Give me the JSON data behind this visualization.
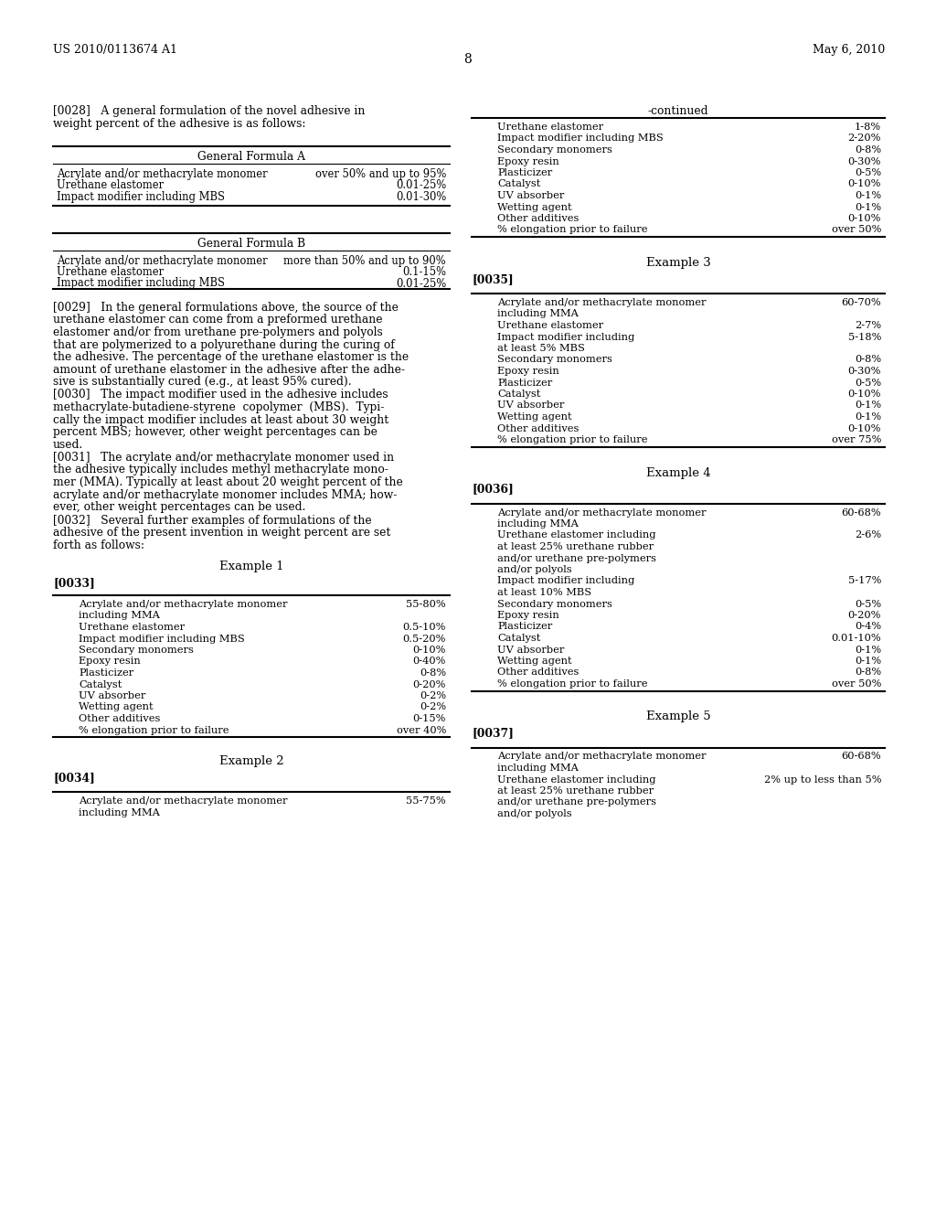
{
  "bg_color": "#ffffff",
  "header_left": "US 2010/0113674 A1",
  "header_right": "May 6, 2010",
  "page_number": "8",
  "left_col": {
    "para0028_lines": [
      "[0028]   A general formulation of the novel adhesive in",
      "weight percent of the adhesive is as follows:"
    ],
    "table_genA_title": "General Formula A",
    "table_genA_rows": [
      [
        "Acrylate and/or methacrylate monomer",
        "over 50% and up to 95%"
      ],
      [
        "Urethane elastomer",
        "0.01-25%"
      ],
      [
        "Impact modifier including MBS",
        "0.01-30%"
      ]
    ],
    "table_genB_title": "General Formula B",
    "table_genB_rows": [
      [
        "Acrylate and/or methacrylate monomer",
        "more than 50% and up to 90%"
      ],
      [
        "Urethane elastomer",
        "0.1-15%"
      ],
      [
        "Impact modifier including MBS",
        "0.01-25%"
      ]
    ],
    "para0029_lines": [
      "[0029]   In the general formulations above, the source of the",
      "urethane elastomer can come from a preformed urethane",
      "elastomer and/or from urethane pre-polymers and polyols",
      "that are polymerized to a polyurethane during the curing of",
      "the adhesive. The percentage of the urethane elastomer is the",
      "amount of urethane elastomer in the adhesive after the adhe-",
      "sive is substantially cured (e.g., at least 95% cured)."
    ],
    "para0030_lines": [
      "[0030]   The impact modifier used in the adhesive includes",
      "methacrylate-butadiene-styrene  copolymer  (MBS).  Typi-",
      "cally the impact modifier includes at least about 30 weight",
      "percent MBS; however, other weight percentages can be",
      "used."
    ],
    "para0031_lines": [
      "[0031]   The acrylate and/or methacrylate monomer used in",
      "the adhesive typically includes methyl methacrylate mono-",
      "mer (MMA). Typically at least about 20 weight percent of the",
      "acrylate and/or methacrylate monomer includes MMA; how-",
      "ever, other weight percentages can be used."
    ],
    "para0032_lines": [
      "[0032]   Several further examples of formulations of the",
      "adhesive of the present invention in weight percent are set",
      "forth as follows:"
    ],
    "example1_title": "Example 1",
    "para0033": "[0033]",
    "table_ex1_rows": [
      [
        "Acrylate and/or methacrylate monomer",
        "55-80%",
        true
      ],
      [
        "including MMA",
        "",
        false
      ],
      [
        "Urethane elastomer",
        "0.5-10%",
        false
      ],
      [
        "Impact modifier including MBS",
        "0.5-20%",
        false
      ],
      [
        "Secondary monomers",
        "0-10%",
        false
      ],
      [
        "Epoxy resin",
        "0-40%",
        false
      ],
      [
        "Plasticizer",
        "0-8%",
        false
      ],
      [
        "Catalyst",
        "0-20%",
        false
      ],
      [
        "UV absorber",
        "0-2%",
        false
      ],
      [
        "Wetting agent",
        "0-2%",
        false
      ],
      [
        "Other additives",
        "0-15%",
        false
      ],
      [
        "% elongation prior to failure",
        "over 40%",
        false
      ]
    ],
    "example2_title": "Example 2",
    "para0034": "[0034]",
    "table_ex2_rows": [
      [
        "Acrylate and/or methacrylate monomer",
        "55-75%",
        true
      ],
      [
        "including MMA",
        "",
        false
      ]
    ]
  },
  "right_col": {
    "continued_label": "-continued",
    "continued_rows": [
      [
        "Urethane elastomer",
        "1-8%"
      ],
      [
        "Impact modifier including MBS",
        "2-20%"
      ],
      [
        "Secondary monomers",
        "0-8%"
      ],
      [
        "Epoxy resin",
        "0-30%"
      ],
      [
        "Plasticizer",
        "0-5%"
      ],
      [
        "Catalyst",
        "0-10%"
      ],
      [
        "UV absorber",
        "0-1%"
      ],
      [
        "Wetting agent",
        "0-1%"
      ],
      [
        "Other additives",
        "0-10%"
      ],
      [
        "% elongation prior to failure",
        "over 50%"
      ]
    ],
    "example3_title": "Example 3",
    "para0035": "[0035]",
    "table_ex3_rows": [
      [
        "Acrylate and/or methacrylate monomer",
        "60-70%",
        true
      ],
      [
        "including MMA",
        "",
        false
      ],
      [
        "Urethane elastomer",
        "2-7%",
        false
      ],
      [
        "Impact modifier including",
        "5-18%",
        false
      ],
      [
        "at least 5% MBS",
        "",
        false
      ],
      [
        "Secondary monomers",
        "0-8%",
        false
      ],
      [
        "Epoxy resin",
        "0-30%",
        false
      ],
      [
        "Plasticizer",
        "0-5%",
        false
      ],
      [
        "Catalyst",
        "0-10%",
        false
      ],
      [
        "UV absorber",
        "0-1%",
        false
      ],
      [
        "Wetting agent",
        "0-1%",
        false
      ],
      [
        "Other additives",
        "0-10%",
        false
      ],
      [
        "% elongation prior to failure",
        "over 75%",
        false
      ]
    ],
    "example4_title": "Example 4",
    "para0036": "[0036]",
    "table_ex4_rows": [
      [
        "Acrylate and/or methacrylate monomer",
        "60-68%",
        true
      ],
      [
        "including MMA",
        "",
        false
      ],
      [
        "Urethane elastomer including",
        "2-6%",
        false
      ],
      [
        "at least 25% urethane rubber",
        "",
        false
      ],
      [
        "and/or urethane pre-polymers",
        "",
        false
      ],
      [
        "and/or polyols",
        "",
        false
      ],
      [
        "Impact modifier including",
        "5-17%",
        false
      ],
      [
        "at least 10% MBS",
        "",
        false
      ],
      [
        "Secondary monomers",
        "0-5%",
        false
      ],
      [
        "Epoxy resin",
        "0-20%",
        false
      ],
      [
        "Plasticizer",
        "0-4%",
        false
      ],
      [
        "Catalyst",
        "0.01-10%",
        false
      ],
      [
        "UV absorber",
        "0-1%",
        false
      ],
      [
        "Wetting agent",
        "0-1%",
        false
      ],
      [
        "Other additives",
        "0-8%",
        false
      ],
      [
        "% elongation prior to failure",
        "over 50%",
        false
      ]
    ],
    "example5_title": "Example 5",
    "para0037": "[0037]",
    "table_ex5_rows": [
      [
        "Acrylate and/or methacrylate monomer",
        "60-68%",
        true
      ],
      [
        "including MMA",
        "",
        false
      ],
      [
        "Urethane elastomer including",
        "2% up to less than 5%",
        false
      ],
      [
        "at least 25% urethane rubber",
        "",
        false
      ],
      [
        "and/or urethane pre-polymers",
        "",
        false
      ],
      [
        "and/or polyols",
        "",
        false
      ]
    ]
  }
}
